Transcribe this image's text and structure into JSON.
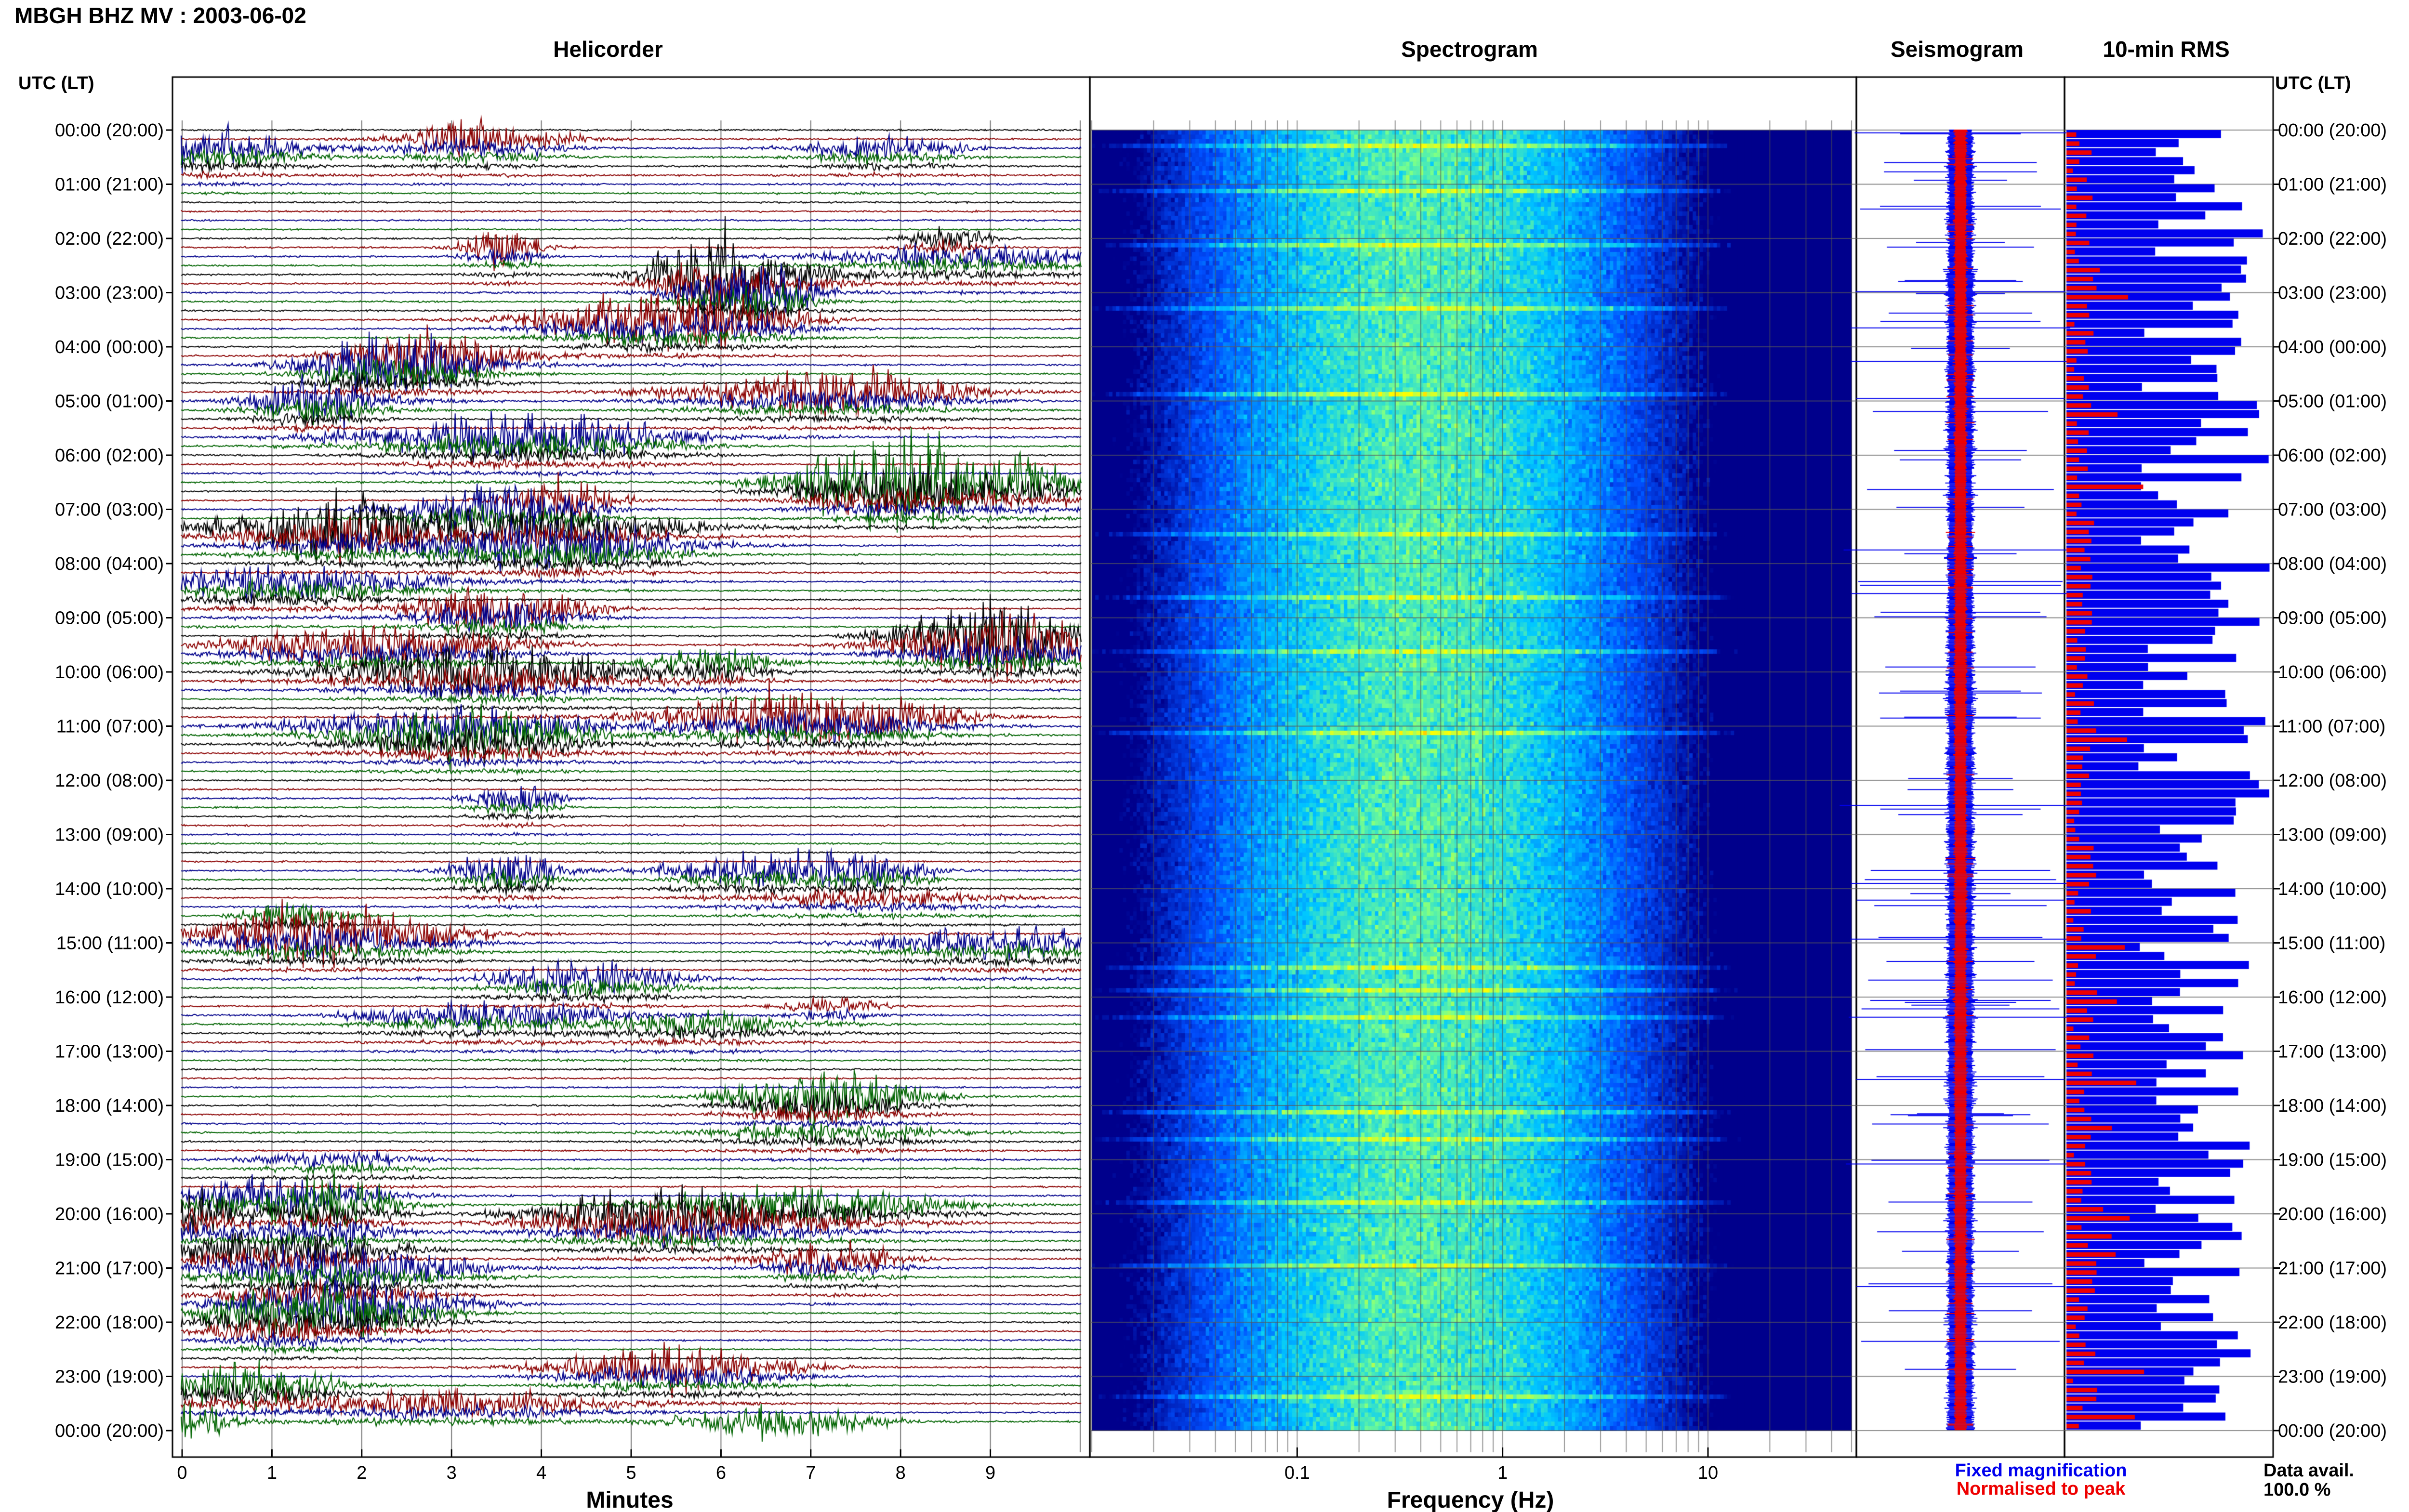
{
  "header": {
    "title": "MBGH BHZ MV : 2003-06-02"
  },
  "panels": {
    "helicorder": {
      "title": "Helicorder",
      "xlabel": "Minutes"
    },
    "spectrogram": {
      "title": "Spectrogram",
      "xlabel": "Frequency (Hz)"
    },
    "seismogram": {
      "title": "Seismogram"
    },
    "rms": {
      "title": "10-min RMS"
    }
  },
  "axis": {
    "left_label": "UTC (LT)",
    "right_label": "UTC (LT)"
  },
  "legend": {
    "fixed": "Fixed magnification",
    "normalised": "Normalised to peak",
    "fixed_color": "#0000ee",
    "normalised_color": "#ee0000"
  },
  "data_avail": {
    "label": "Data avail.",
    "value": "100.0 %"
  },
  "colors": {
    "trace_black": "#000000",
    "trace_red": "#8b0000",
    "trace_blue": "#00008b",
    "trace_green": "#006400",
    "rms_blue": "#0000ee",
    "rms_red": "#ee0000"
  },
  "chart_data": [
    {
      "type": "line",
      "name": "helicorder",
      "x_unit": "Minutes",
      "x_ticks": [
        "0",
        "1",
        "2",
        "3",
        "4",
        "5",
        "6",
        "7",
        "8",
        "9"
      ],
      "xlim": [
        0,
        10
      ],
      "lines_per_hour": 6,
      "y_tick_labels": [
        "00:00 (20:00)",
        "01:00 (21:00)",
        "02:00 (22:00)",
        "03:00 (23:00)",
        "04:00 (00:00)",
        "05:00 (01:00)",
        "06:00 (02:00)",
        "07:00 (03:00)",
        "08:00 (04:00)",
        "09:00 (05:00)",
        "10:00 (06:00)",
        "11:00 (07:00)",
        "12:00 (08:00)",
        "13:00 (09:00)",
        "14:00 (10:00)",
        "15:00 (11:00)",
        "16:00 (12:00)",
        "17:00 (13:00)",
        "18:00 (14:00)",
        "19:00 (15:00)",
        "20:00 (16:00)",
        "21:00 (17:00)",
        "22:00 (18:00)",
        "23:00 (19:00)",
        "00:00 (20:00)"
      ]
    },
    {
      "type": "heatmap",
      "name": "spectrogram",
      "x_scale": "log",
      "xlim": [
        0.01,
        50
      ],
      "x_ticks": [
        "0.1",
        "1",
        "10"
      ],
      "peak_band_hz": [
        0.25,
        0.6
      ]
    },
    {
      "type": "line",
      "name": "seismogram"
    },
    {
      "type": "bar",
      "name": "10-min RMS",
      "bins": 144,
      "series": [
        {
          "name": "Fixed magnification",
          "color": "#0000ee"
        },
        {
          "name": "Normalised to peak",
          "color": "#ee0000"
        }
      ]
    }
  ]
}
